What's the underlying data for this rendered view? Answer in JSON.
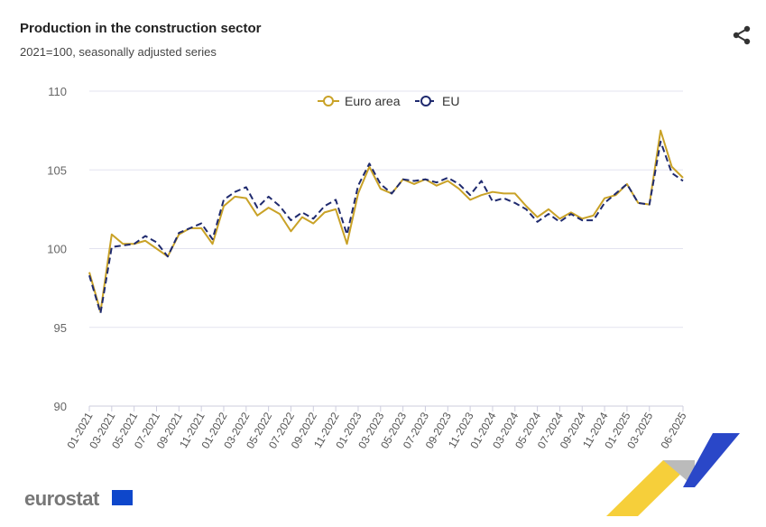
{
  "header": {
    "title": "Production in the construction sector",
    "subtitle": "2021=100, seasonally adjusted series",
    "share_icon": "share-icon"
  },
  "logo": {
    "text": "eurostat"
  },
  "chart_data": {
    "type": "line",
    "title": "Production in the construction sector",
    "subtitle": "2021=100, seasonally adjusted series",
    "ylim": [
      90,
      110
    ],
    "yticks": [
      90,
      95,
      100,
      105,
      110
    ],
    "grid": true,
    "legend_position": "top-center",
    "x": [
      "01-2021",
      "02-2021",
      "03-2021",
      "04-2021",
      "05-2021",
      "06-2021",
      "07-2021",
      "08-2021",
      "09-2021",
      "10-2021",
      "11-2021",
      "12-2021",
      "01-2022",
      "02-2022",
      "03-2022",
      "04-2022",
      "05-2022",
      "06-2022",
      "07-2022",
      "08-2022",
      "09-2022",
      "10-2022",
      "11-2022",
      "12-2022",
      "01-2023",
      "02-2023",
      "03-2023",
      "04-2023",
      "05-2023",
      "06-2023",
      "07-2023",
      "08-2023",
      "09-2023",
      "10-2023",
      "11-2023",
      "12-2023",
      "01-2024",
      "02-2024",
      "03-2024",
      "04-2024",
      "05-2024",
      "06-2024",
      "07-2024",
      "08-2024",
      "09-2024",
      "10-2024",
      "11-2024",
      "12-2024",
      "01-2025",
      "02-2025",
      "03-2025",
      "04-2025",
      "05-2025",
      "06-2025"
    ],
    "xtick_labels": [
      "01-2021",
      "03-2021",
      "05-2021",
      "07-2021",
      "09-2021",
      "11-2021",
      "01-2022",
      "03-2022",
      "05-2022",
      "07-2022",
      "09-2022",
      "11-2022",
      "01-2023",
      "03-2023",
      "05-2023",
      "07-2023",
      "09-2023",
      "11-2023",
      "01-2024",
      "03-2024",
      "05-2024",
      "07-2024",
      "09-2024",
      "11-2024",
      "01-2025",
      "03-2025",
      "06-2025"
    ],
    "series": [
      {
        "name": "Euro area",
        "color": "#c9a227",
        "dash": false,
        "values": [
          98.5,
          96.0,
          100.9,
          100.3,
          100.3,
          100.5,
          100.0,
          99.5,
          100.9,
          101.3,
          101.3,
          100.3,
          102.7,
          103.3,
          103.2,
          102.1,
          102.6,
          102.2,
          101.1,
          102.0,
          101.6,
          102.3,
          102.5,
          100.3,
          103.5,
          105.2,
          103.8,
          103.5,
          104.4,
          104.1,
          104.4,
          104.0,
          104.3,
          103.8,
          103.1,
          103.4,
          103.6,
          103.5,
          103.5,
          102.7,
          102.0,
          102.5,
          101.9,
          102.3,
          101.9,
          102.1,
          103.2,
          103.4,
          104.1,
          102.9,
          102.8,
          107.5,
          105.2,
          104.5
        ]
      },
      {
        "name": "EU",
        "color": "#1f2a6e",
        "dash": true,
        "values": [
          98.3,
          95.9,
          100.1,
          100.2,
          100.3,
          100.8,
          100.4,
          99.5,
          101.0,
          101.3,
          101.6,
          100.6,
          103.1,
          103.6,
          103.9,
          102.6,
          103.3,
          102.7,
          101.8,
          102.3,
          101.9,
          102.7,
          103.1,
          100.9,
          104.0,
          105.4,
          104.1,
          103.5,
          104.4,
          104.3,
          104.4,
          104.2,
          104.5,
          104.1,
          103.4,
          104.3,
          103.0,
          103.2,
          102.9,
          102.5,
          101.7,
          102.2,
          101.7,
          102.2,
          101.8,
          101.8,
          102.9,
          103.5,
          104.1,
          102.9,
          102.8,
          106.8,
          104.8,
          104.3
        ]
      }
    ]
  }
}
